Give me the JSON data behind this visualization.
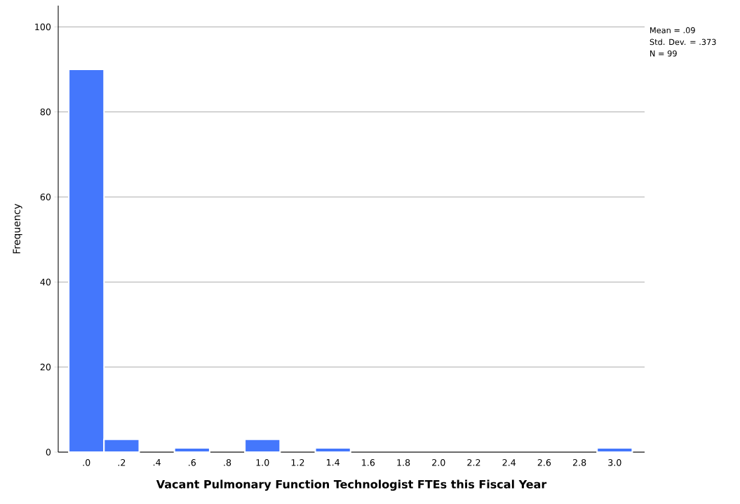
{
  "chart_data": {
    "type": "histogram",
    "xlabel": "Vacant Pulmonary Function Technologist FTEs this Fiscal Year",
    "ylabel": "Frequency",
    "bins": [
      -0.1,
      0.1,
      0.3,
      0.5,
      0.7,
      0.9,
      1.1,
      1.3,
      1.5,
      1.7,
      1.9,
      2.1,
      2.3,
      2.5,
      2.7,
      2.9,
      3.1
    ],
    "values": [
      90,
      3,
      0,
      1,
      0,
      3,
      0,
      1,
      0,
      0,
      0,
      0,
      0,
      0,
      0,
      1
    ],
    "color": "#4477fc",
    "xlim": [
      -0.16,
      3.17
    ],
    "ylim": [
      0,
      105
    ],
    "xticks": [
      {
        "value": 0,
        "label": ".0"
      },
      {
        "value": 0.2,
        "label": ".2"
      },
      {
        "value": 0.4,
        "label": ".4"
      },
      {
        "value": 0.6,
        "label": ".6"
      },
      {
        "value": 0.8,
        "label": ".8"
      },
      {
        "value": 1.0,
        "label": "1.0"
      },
      {
        "value": 1.2,
        "label": "1.2"
      },
      {
        "value": 1.4,
        "label": "1.4"
      },
      {
        "value": 1.6,
        "label": "1.6"
      },
      {
        "value": 1.8,
        "label": "1.8"
      },
      {
        "value": 2.0,
        "label": "2.0"
      },
      {
        "value": 2.2,
        "label": "2.2"
      },
      {
        "value": 2.4,
        "label": "2.4"
      },
      {
        "value": 2.6,
        "label": "2.6"
      },
      {
        "value": 2.8,
        "label": "2.8"
      },
      {
        "value": 3.0,
        "label": "3.0"
      }
    ],
    "yticks": [
      0,
      20,
      40,
      60,
      80,
      100
    ],
    "grid": "y",
    "annotations": [
      "Mean = .09",
      "Std. Dev. = .373",
      "N = 99"
    ]
  }
}
